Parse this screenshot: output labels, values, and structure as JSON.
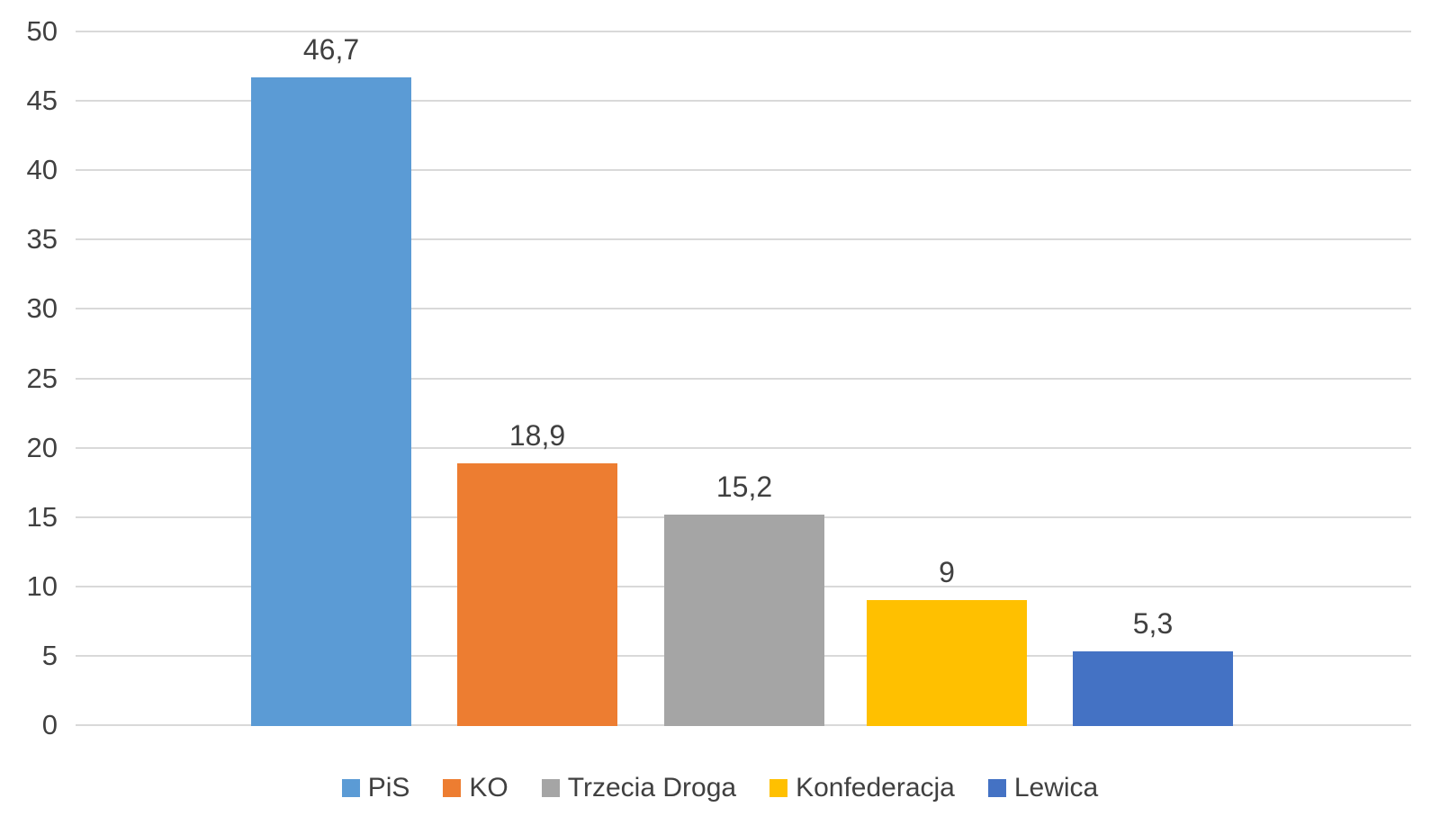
{
  "chart_data": {
    "type": "bar",
    "title": "",
    "xlabel": "",
    "ylabel": "",
    "categories": [
      "PiS",
      "KO",
      "Trzecia Droga",
      "Konfederacja",
      "Lewica"
    ],
    "values": [
      46.7,
      18.9,
      15.2,
      9,
      5.3
    ],
    "value_labels": [
      "46,7",
      "18,9",
      "15,2",
      "9",
      "5,3"
    ],
    "series_colors": [
      "#5b9bd5",
      "#ed7d31",
      "#a5a5a5",
      "#ffc000",
      "#4472c4"
    ],
    "ylim": [
      0,
      50
    ],
    "yticks": [
      0,
      5,
      10,
      15,
      20,
      25,
      30,
      35,
      40,
      45,
      50
    ],
    "ytick_labels": [
      "0",
      "5",
      "10",
      "15",
      "20",
      "25",
      "30",
      "35",
      "40",
      "45",
      "50"
    ],
    "grid": true,
    "gridline_color": "#d9d9d9",
    "text_color": "#404040",
    "background_color": "#ffffff",
    "legend_position": "bottom",
    "legend": {
      "items": [
        {
          "label": "PiS",
          "color": "#5b9bd5"
        },
        {
          "label": "KO",
          "color": "#ed7d31"
        },
        {
          "label": "Trzecia Droga",
          "color": "#a5a5a5"
        },
        {
          "label": "Konfederacja",
          "color": "#ffc000"
        },
        {
          "label": "Lewica",
          "color": "#4472c4"
        }
      ]
    }
  }
}
